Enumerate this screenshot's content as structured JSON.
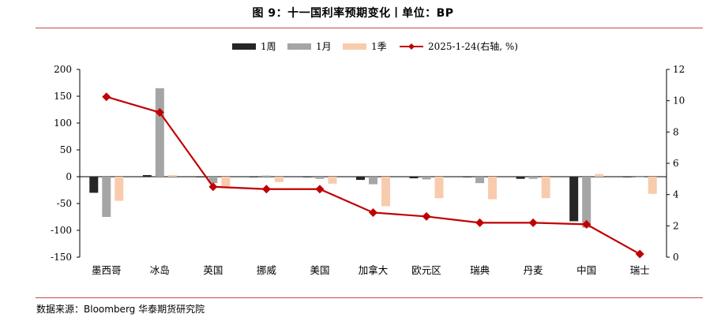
{
  "title": "图 9：十一国利率预期变化丨单位：BP",
  "source": "数据来源：Bloomberg  华泰期货研究院",
  "colors": {
    "w1": "#262626",
    "m1": "#a5a5a5",
    "q1": "#f8cbad",
    "line": "#c00000",
    "rule": "#c9484c"
  },
  "chart_data": {
    "type": "bar+line",
    "categories": [
      "墨西哥",
      "冰岛",
      "英国",
      "挪威",
      "美国",
      "加拿大",
      "欧元区",
      "瑞典",
      "丹麦",
      "中国",
      "瑞士"
    ],
    "series": [
      {
        "name": "1周",
        "axis": "left",
        "type": "bar",
        "color": "#262626",
        "values": [
          -30,
          3,
          -1,
          -1,
          0,
          -6,
          -3,
          0,
          -4,
          -83,
          0
        ]
      },
      {
        "name": "1月",
        "axis": "left",
        "type": "bar",
        "color": "#a5a5a5",
        "values": [
          -75,
          165,
          -12,
          2,
          -4,
          -14,
          -5,
          -12,
          -4,
          -95,
          0
        ]
      },
      {
        "name": "1季",
        "axis": "left",
        "type": "bar",
        "color": "#f8cbad",
        "values": [
          -45,
          3,
          -18,
          -10,
          -13,
          -55,
          -40,
          -42,
          -40,
          5,
          -32
        ]
      },
      {
        "name": "2025-1-24(右轴, %)",
        "axis": "right",
        "type": "line",
        "color": "#c00000",
        "values": [
          10.25,
          9.25,
          4.5,
          4.35,
          4.35,
          2.85,
          2.6,
          2.2,
          2.2,
          2.1,
          0.2
        ]
      }
    ],
    "left_axis": {
      "ylim": [
        -150,
        200
      ],
      "ticks": [
        "200",
        "150",
        "100",
        "50",
        "0",
        "-50",
        "-100",
        "-150"
      ]
    },
    "right_axis": {
      "ylim": [
        0,
        12
      ],
      "ticks": [
        "12",
        "10",
        "8",
        "6",
        "4",
        "2",
        "0"
      ]
    },
    "legend_position": "top-center",
    "grid": false
  }
}
